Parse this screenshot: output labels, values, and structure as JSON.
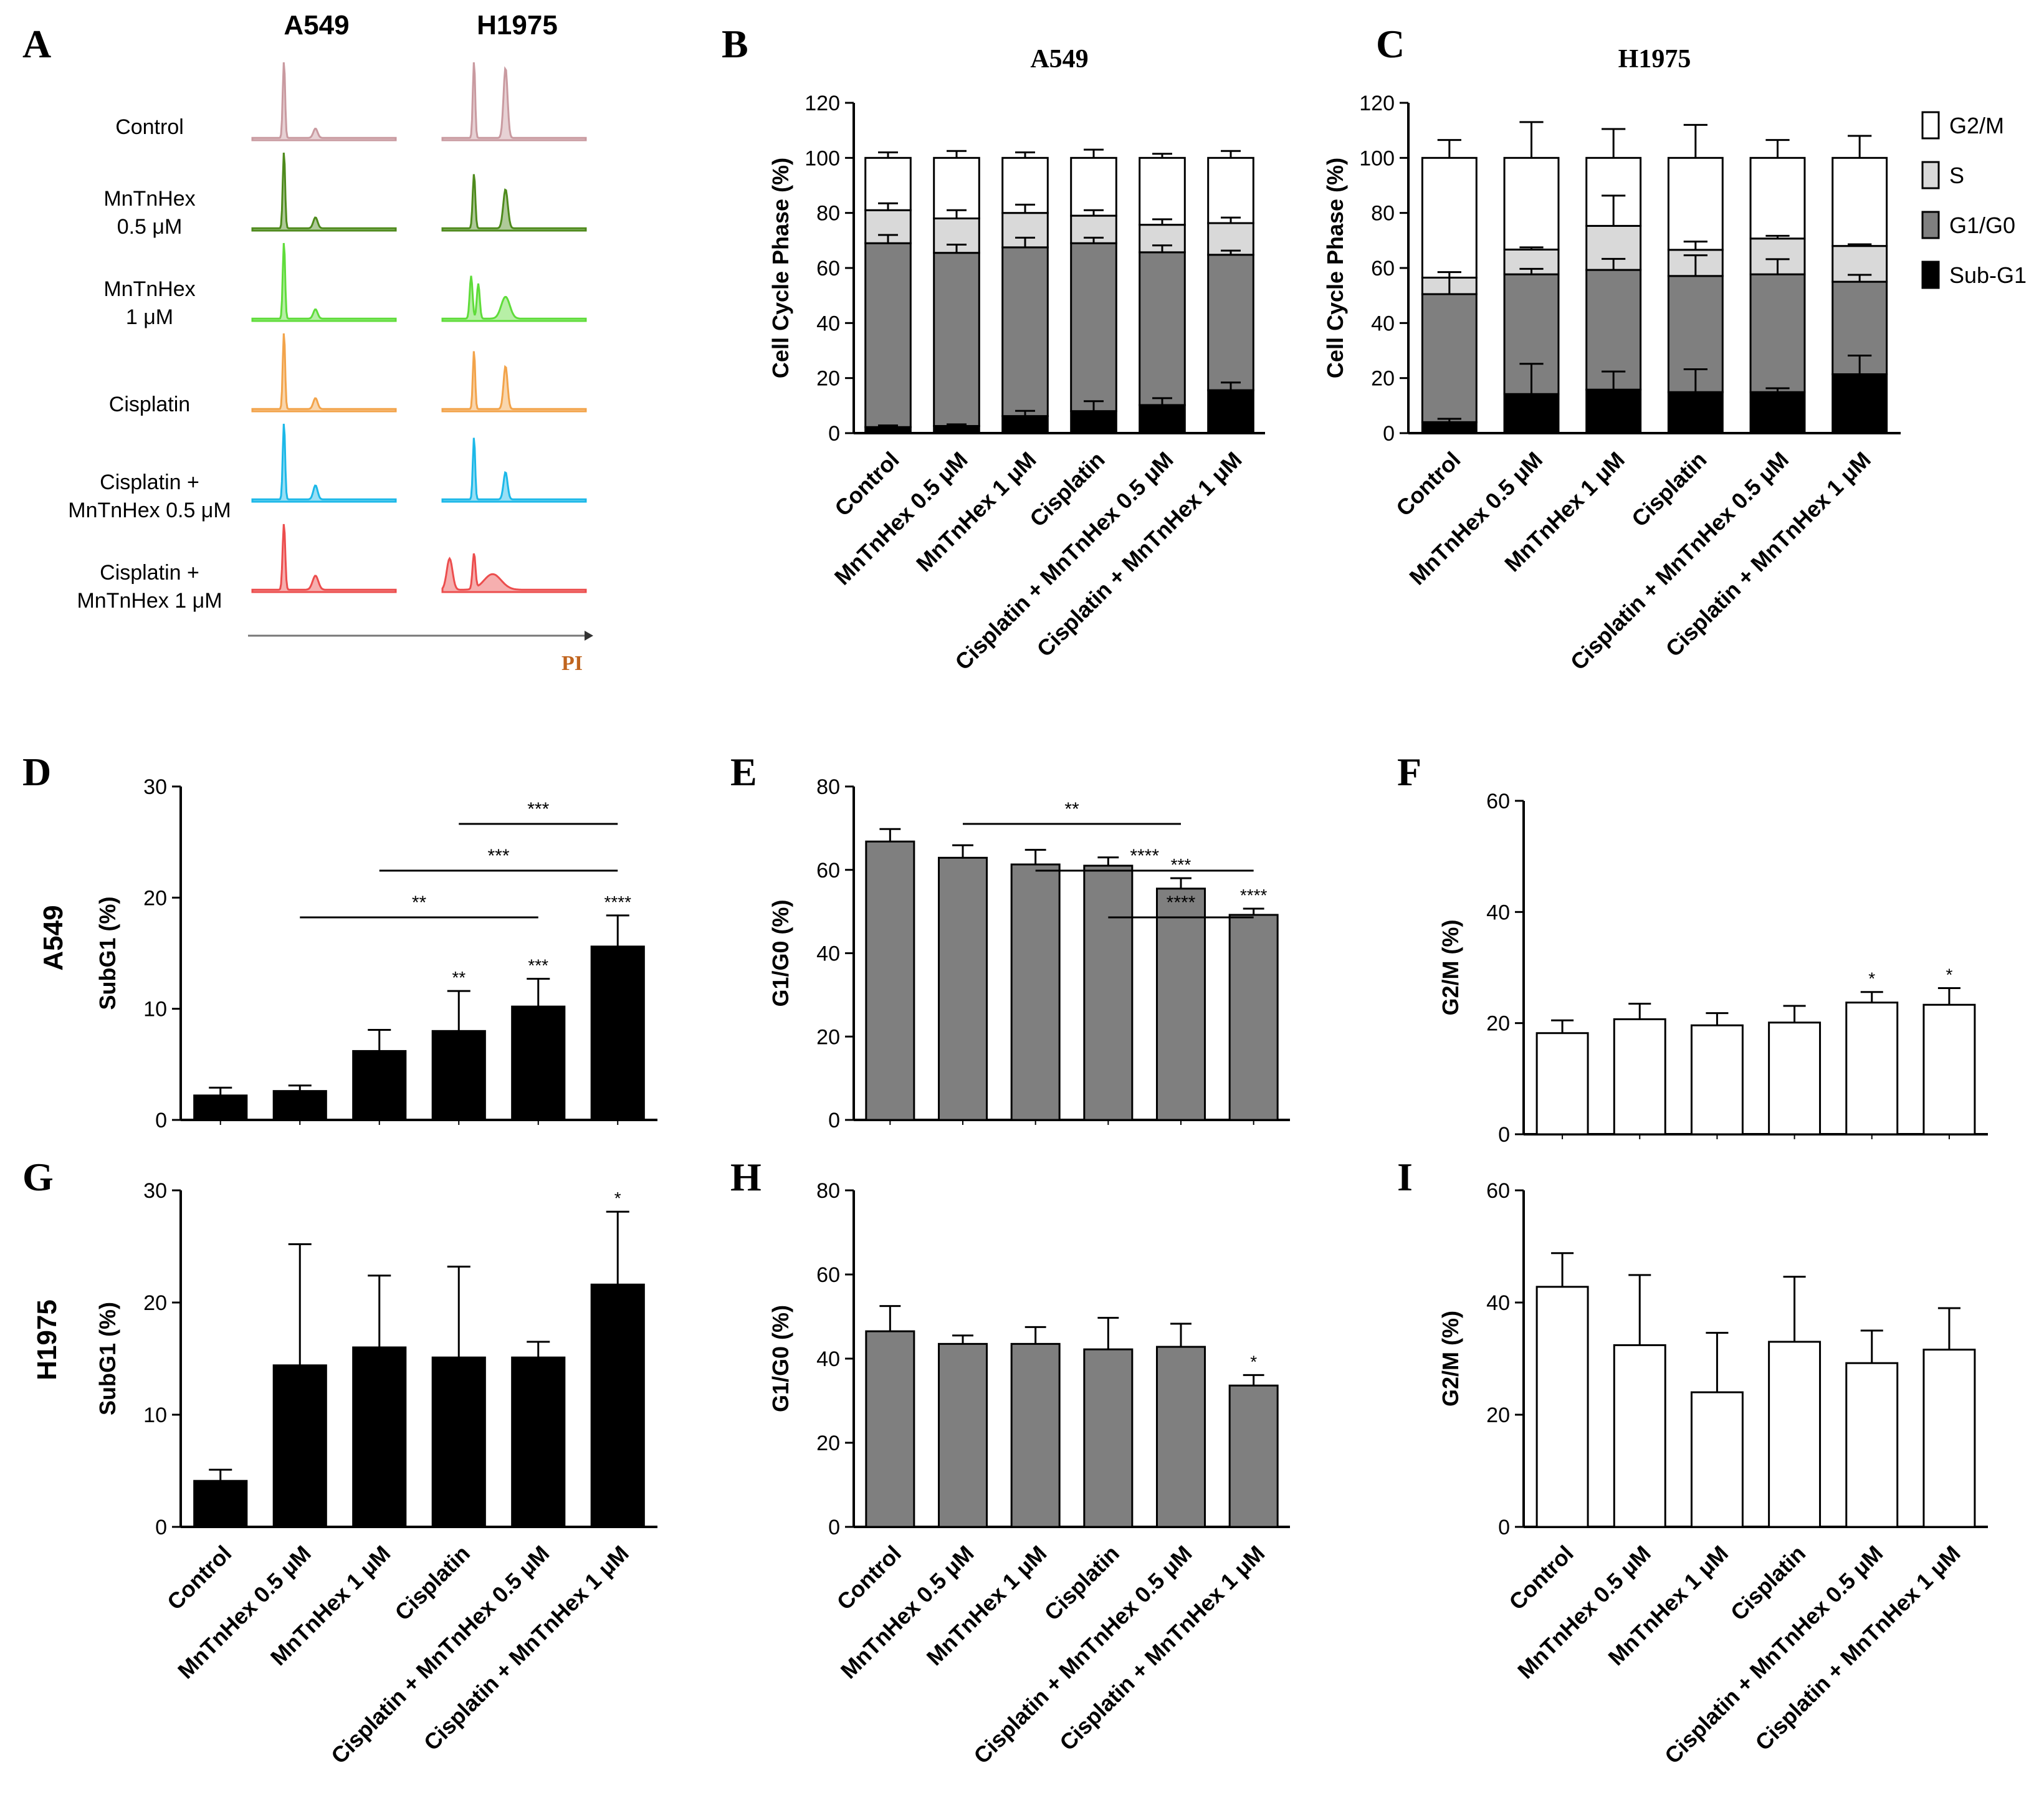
{
  "panel_letters": [
    "A",
    "B",
    "C",
    "D",
    "E",
    "F",
    "G",
    "H",
    "I"
  ],
  "colors": {
    "control": "#c99aa0",
    "mn05": "#4e8a1c",
    "mn1": "#5fdc3a",
    "cis": "#f2a34a",
    "cis_mn05": "#1cb8e8",
    "cis_mn1": "#ec4d4d",
    "sub_g1": "#000000",
    "g1_g0": "#7f7f7f",
    "s": "#d9d9d9",
    "g2_m": "#ffffff",
    "pi_label": "#c0641e"
  },
  "panel_a": {
    "col_labels": [
      "A549",
      "H1975"
    ],
    "row_labels": [
      [
        "Control"
      ],
      [
        "MnTnHex",
        "0.5 μM"
      ],
      [
        "MnTnHex",
        "1 μM"
      ],
      [
        "Cisplatin"
      ],
      [
        "Cisplatin +",
        "MnTnHex 0.5 μM"
      ],
      [
        "Cisplatin +",
        "MnTnHex 1 μM"
      ]
    ],
    "row_colors": [
      "control",
      "mn05",
      "mn1",
      "cis",
      "cis_mn05",
      "cis_mn1"
    ],
    "x_label": "PI"
  },
  "categories": [
    "Control",
    "MnTnHex 0.5 μM",
    "MnTnHex 1 μM",
    "Cisplatin",
    "Cisplatin + MnTnHex 0.5 μM",
    "Cisplatin + MnTnHex 1 μM"
  ],
  "row_labels": [
    "A549",
    "H1975"
  ],
  "stack_legend": [
    "G2/M",
    "S",
    "G1/G0",
    "Sub-G1"
  ],
  "chart_data": [
    {
      "panel": "B",
      "type": "bar",
      "stacked": true,
      "title": "A549",
      "ylabel": "Cell Cycle Phase (%)",
      "ylim": [
        0,
        120
      ],
      "yticks": [
        0,
        20,
        40,
        60,
        80,
        100,
        120
      ],
      "series": [
        {
          "name": "Sub-G1",
          "values": [
            2.2,
            2.6,
            6.2,
            8.0,
            10.2,
            15.6
          ],
          "err": [
            0.6,
            0.6,
            1.9,
            3.6,
            2.5,
            2.8
          ]
        },
        {
          "name": "G1/G0",
          "values": [
            66.8,
            62.9,
            61.3,
            61.0,
            55.5,
            49.2
          ],
          "err": [
            3.0,
            3.0,
            3.5,
            2.0,
            2.5,
            1.5
          ]
        },
        {
          "name": "S",
          "values": [
            12.0,
            12.5,
            12.5,
            10.0,
            10.0,
            11.5
          ],
          "err": [
            2.5,
            3.0,
            3.0,
            2.0,
            2.0,
            2.0
          ]
        },
        {
          "name": "G2/M",
          "values": [
            19.0,
            22.0,
            20.0,
            21.0,
            24.3,
            23.7
          ],
          "err": [
            2.0,
            2.5,
            2.0,
            3.0,
            1.5,
            2.5
          ]
        }
      ]
    },
    {
      "panel": "C",
      "type": "bar",
      "stacked": true,
      "title": "H1975",
      "ylabel": "Cell Cycle Phase (%)",
      "ylim": [
        0,
        120
      ],
      "yticks": [
        0,
        20,
        40,
        60,
        80,
        100,
        120
      ],
      "series": [
        {
          "name": "Sub-G1",
          "values": [
            4.0,
            14.2,
            15.8,
            14.9,
            14.9,
            21.4
          ],
          "err": [
            1.2,
            11.0,
            6.6,
            8.3,
            1.4,
            6.8
          ]
        },
        {
          "name": "G1/G0",
          "values": [
            46.5,
            43.5,
            43.5,
            42.2,
            42.8,
            33.6
          ],
          "err": [
            6.0,
            2.0,
            4.0,
            7.5,
            5.5,
            2.5
          ]
        },
        {
          "name": "S",
          "values": [
            6.0,
            9.0,
            16.0,
            9.5,
            13.0,
            13.0
          ],
          "err": [
            2.0,
            0.8,
            11.0,
            3.0,
            1.0,
            0.6
          ]
        },
        {
          "name": "G2/M",
          "values": [
            43.5,
            33.3,
            24.7,
            33.4,
            29.3,
            32.0
          ],
          "err": [
            6.5,
            13.0,
            10.5,
            12.0,
            6.5,
            8.0
          ]
        }
      ]
    },
    {
      "panel": "D",
      "type": "bar",
      "ylabel": "SubG1 (%)",
      "fill": "#000000",
      "ylim": [
        0,
        30
      ],
      "yticks": [
        0,
        10,
        20,
        30
      ],
      "values": [
        2.2,
        2.6,
        6.2,
        8.0,
        10.2,
        15.6
      ],
      "err": [
        0.7,
        0.5,
        1.9,
        3.6,
        2.5,
        2.8
      ],
      "bar_stars": [
        "",
        "",
        "",
        "**",
        "***",
        "****"
      ],
      "brackets": [
        {
          "from": 3,
          "to": 5,
          "stars": "***"
        },
        {
          "from": 2,
          "to": 5,
          "stars": "***"
        },
        {
          "from": 1,
          "to": 4,
          "stars": "**"
        }
      ],
      "show_xlabels": false
    },
    {
      "panel": "E",
      "type": "bar",
      "ylabel": "G1/G0 (%)",
      "fill": "#7f7f7f",
      "ylim": [
        0,
        80
      ],
      "yticks": [
        0,
        20,
        40,
        60,
        80
      ],
      "values": [
        66.8,
        62.9,
        61.3,
        61.0,
        55.5,
        49.2
      ],
      "err": [
        3.0,
        3.0,
        3.5,
        2.0,
        2.5,
        1.5
      ],
      "bar_stars": [
        "",
        "",
        "",
        "",
        "***",
        "****"
      ],
      "brackets": [
        {
          "from": 1,
          "to": 4,
          "stars": "**"
        },
        {
          "from": 2,
          "to": 5,
          "stars": "****"
        },
        {
          "from": 3,
          "to": 5,
          "stars": "****"
        }
      ],
      "show_xlabels": false
    },
    {
      "panel": "F",
      "type": "bar",
      "ylabel": "G2/M (%)",
      "fill": "#ffffff",
      "ylim": [
        0,
        60
      ],
      "yticks": [
        0,
        20,
        40,
        60
      ],
      "values": [
        18.2,
        20.7,
        19.6,
        20.1,
        23.7,
        23.3
      ],
      "err": [
        2.3,
        2.8,
        2.2,
        3.0,
        1.9,
        3.0
      ],
      "bar_stars": [
        "",
        "",
        "",
        "",
        "*",
        "*"
      ],
      "brackets": [],
      "show_xlabels": false
    },
    {
      "panel": "G",
      "type": "bar",
      "ylabel": "SubG1 (%)",
      "fill": "#000000",
      "ylim": [
        0,
        30
      ],
      "yticks": [
        0,
        10,
        20,
        30
      ],
      "values": [
        4.1,
        14.4,
        16.0,
        15.1,
        15.1,
        21.6
      ],
      "err": [
        1.0,
        10.8,
        6.4,
        8.1,
        1.4,
        6.5
      ],
      "bar_stars": [
        "",
        "",
        "",
        "",
        "",
        "*"
      ],
      "brackets": [],
      "show_xlabels": true
    },
    {
      "panel": "H",
      "type": "bar",
      "ylabel": "G1/G0 (%)",
      "fill": "#7f7f7f",
      "ylim": [
        0,
        80
      ],
      "yticks": [
        0,
        20,
        40,
        60,
        80
      ],
      "values": [
        46.5,
        43.5,
        43.5,
        42.2,
        42.8,
        33.6
      ],
      "err": [
        6.0,
        2.0,
        4.0,
        7.5,
        5.5,
        2.5
      ],
      "bar_stars": [
        "",
        "",
        "",
        "",
        "",
        "*"
      ],
      "brackets": [],
      "show_xlabels": true
    },
    {
      "panel": "I",
      "type": "bar",
      "ylabel": "G2/M (%)",
      "fill": "#ffffff",
      "ylim": [
        0,
        60
      ],
      "yticks": [
        0,
        20,
        40,
        60
      ],
      "values": [
        42.8,
        32.4,
        24.0,
        33.0,
        29.2,
        31.6
      ],
      "err": [
        6.0,
        12.5,
        10.6,
        11.6,
        5.8,
        7.4
      ],
      "bar_stars": [
        "",
        "",
        "",
        "",
        "",
        ""
      ],
      "brackets": [],
      "show_xlabels": true
    }
  ]
}
